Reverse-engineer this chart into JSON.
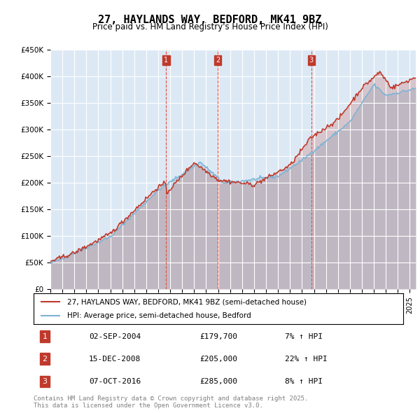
{
  "title": "27, HAYLANDS WAY, BEDFORD, MK41 9BZ",
  "subtitle": "Price paid vs. HM Land Registry's House Price Index (HPI)",
  "ylabel_ticks": [
    "£0",
    "£50K",
    "£100K",
    "£150K",
    "£200K",
    "£250K",
    "£300K",
    "£350K",
    "£400K",
    "£450K"
  ],
  "ylim": [
    0,
    450000
  ],
  "xlim_start": 1995.0,
  "xlim_end": 2025.5,
  "legend_line1": "27, HAYLANDS WAY, BEDFORD, MK41 9BZ (semi-detached house)",
  "legend_line2": "HPI: Average price, semi-detached house, Bedford",
  "annotation1": {
    "num": "1",
    "date": "02-SEP-2004",
    "price": "£179,700",
    "pct": "7% ↑ HPI",
    "x": 2004.67
  },
  "annotation2": {
    "num": "2",
    "date": "15-DEC-2008",
    "price": "£205,000",
    "pct": "22% ↑ HPI",
    "x": 2008.96
  },
  "annotation3": {
    "num": "3",
    "date": "07-OCT-2016",
    "price": "£285,000",
    "pct": "8% ↑ HPI",
    "x": 2016.77
  },
  "footer": "Contains HM Land Registry data © Crown copyright and database right 2025.\nThis data is licensed under the Open Government Licence v3.0.",
  "color_red": "#c0392b",
  "color_blue": "#7fb3d3",
  "color_dashed": "#e74c3c",
  "bg_color": "#dce9f5",
  "grid_color": "#ffffff",
  "annotation_box_color": "#c0392b"
}
